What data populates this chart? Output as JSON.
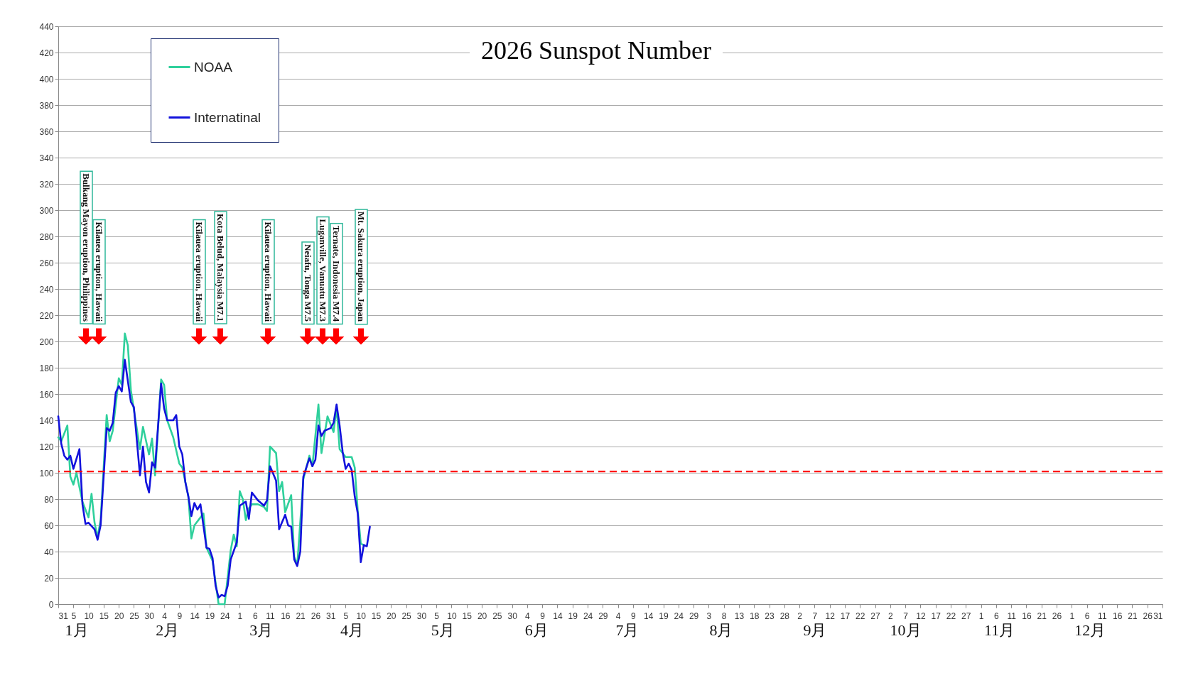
{
  "chart_data": {
    "type": "line",
    "title": "2026 Sunspot Number",
    "xlim": [
      "2025-12-31",
      "2026-12-31"
    ],
    "xticks": [
      {
        "value": "2025-12-31",
        "label": "31"
      },
      {
        "value": "2026-01-05",
        "label": "5"
      },
      {
        "value": "2026-01-10",
        "label": "10"
      },
      {
        "value": "2026-01-15",
        "label": "15"
      },
      {
        "value": "2026-01-20",
        "label": "20"
      },
      {
        "value": "2026-01-25",
        "label": "25"
      },
      {
        "value": "2026-01-30",
        "label": "30"
      },
      {
        "value": "2026-02-04",
        "label": "4"
      },
      {
        "value": "2026-02-09",
        "label": "9"
      },
      {
        "value": "2026-02-14",
        "label": "14"
      },
      {
        "value": "2026-02-19",
        "label": "19"
      },
      {
        "value": "2026-02-24",
        "label": "24"
      },
      {
        "value": "2026-03-01",
        "label": "1"
      },
      {
        "value": "2026-03-06",
        "label": "6"
      },
      {
        "value": "2026-03-11",
        "label": "11"
      },
      {
        "value": "2026-03-16",
        "label": "16"
      },
      {
        "value": "2026-03-21",
        "label": "21"
      },
      {
        "value": "2026-03-26",
        "label": "26"
      },
      {
        "value": "2026-03-31",
        "label": "31"
      },
      {
        "value": "2026-04-05",
        "label": "5"
      },
      {
        "value": "2026-04-10",
        "label": "10"
      },
      {
        "value": "2026-04-15",
        "label": "15"
      },
      {
        "value": "2026-04-20",
        "label": "20"
      },
      {
        "value": "2026-04-25",
        "label": "25"
      },
      {
        "value": "2026-04-30",
        "label": "30"
      },
      {
        "value": "2026-05-05",
        "label": "5"
      },
      {
        "value": "2026-05-10",
        "label": "10"
      },
      {
        "value": "2026-05-15",
        "label": "15"
      },
      {
        "value": "2026-05-20",
        "label": "20"
      },
      {
        "value": "2026-05-25",
        "label": "25"
      },
      {
        "value": "2026-05-30",
        "label": "30"
      },
      {
        "value": "2026-06-04",
        "label": "4"
      },
      {
        "value": "2026-06-09",
        "label": "9"
      },
      {
        "value": "2026-06-14",
        "label": "14"
      },
      {
        "value": "2026-06-19",
        "label": "19"
      },
      {
        "value": "2026-06-24",
        "label": "24"
      },
      {
        "value": "2026-06-29",
        "label": "29"
      },
      {
        "value": "2026-07-04",
        "label": "4"
      },
      {
        "value": "2026-07-09",
        "label": "9"
      },
      {
        "value": "2026-07-14",
        "label": "14"
      },
      {
        "value": "2026-07-19",
        "label": "19"
      },
      {
        "value": "2026-07-24",
        "label": "24"
      },
      {
        "value": "2026-07-29",
        "label": "29"
      },
      {
        "value": "2026-08-03",
        "label": "3"
      },
      {
        "value": "2026-08-08",
        "label": "8"
      },
      {
        "value": "2026-08-13",
        "label": "13"
      },
      {
        "value": "2026-08-18",
        "label": "18"
      },
      {
        "value": "2026-08-23",
        "label": "23"
      },
      {
        "value": "2026-08-28",
        "label": "28"
      },
      {
        "value": "2026-09-02",
        "label": "2"
      },
      {
        "value": "2026-09-07",
        "label": "7"
      },
      {
        "value": "2026-09-12",
        "label": "12"
      },
      {
        "value": "2026-09-17",
        "label": "17"
      },
      {
        "value": "2026-09-22",
        "label": "22"
      },
      {
        "value": "2026-09-27",
        "label": "27"
      },
      {
        "value": "2026-10-02",
        "label": "2"
      },
      {
        "value": "2026-10-07",
        "label": "7"
      },
      {
        "value": "2026-10-12",
        "label": "12"
      },
      {
        "value": "2026-10-17",
        "label": "17"
      },
      {
        "value": "2026-10-22",
        "label": "22"
      },
      {
        "value": "2026-10-27",
        "label": "27"
      },
      {
        "value": "2026-11-01",
        "label": "1"
      },
      {
        "value": "2026-11-06",
        "label": "6"
      },
      {
        "value": "2026-11-11",
        "label": "11"
      },
      {
        "value": "2026-11-16",
        "label": "16"
      },
      {
        "value": "2026-11-21",
        "label": "21"
      },
      {
        "value": "2026-11-26",
        "label": "26"
      },
      {
        "value": "2026-12-01",
        "label": "1"
      },
      {
        "value": "2026-12-06",
        "label": "6"
      },
      {
        "value": "2026-12-11",
        "label": "11"
      },
      {
        "value": "2026-12-16",
        "label": "16"
      },
      {
        "value": "2026-12-21",
        "label": "21"
      },
      {
        "value": "2026-12-26",
        "label": "26"
      },
      {
        "value": "2026-12-31",
        "label": "31"
      }
    ],
    "x2lim": [
      "2025-12-31",
      "2026-12-31"
    ],
    "x2ticks": [
      {
        "value": "2026-01-06",
        "label": "1月"
      },
      {
        "value": "2026-02-05",
        "label": "2月"
      },
      {
        "value": "2026-03-08",
        "label": "3月"
      },
      {
        "value": "2026-04-07",
        "label": "4月"
      },
      {
        "value": "2026-05-07",
        "label": "5月"
      },
      {
        "value": "2026-06-07",
        "label": "6月"
      },
      {
        "value": "2026-07-07",
        "label": "7月"
      },
      {
        "value": "2026-08-07",
        "label": "8月"
      },
      {
        "value": "2026-09-07",
        "label": "9月"
      },
      {
        "value": "2026-10-07",
        "label": "10月"
      },
      {
        "value": "2026-11-07",
        "label": "11月"
      },
      {
        "value": "2026-12-07",
        "label": "12月"
      }
    ],
    "ylim": [
      0,
      440
    ],
    "yticks": [
      0,
      20,
      40,
      60,
      80,
      100,
      120,
      140,
      160,
      180,
      200,
      220,
      240,
      260,
      280,
      300,
      320,
      340,
      360,
      380,
      400,
      420,
      440
    ],
    "grid": "y",
    "legend": "top left",
    "line_style": "solid",
    "series": [
      {
        "name": "NOAA",
        "color": "#2fd09c",
        "x": [
          "2025-12-31",
          "2026-01-01",
          "2026-01-03",
          "2026-01-04",
          "2026-01-05",
          "2026-01-06",
          "2026-01-08",
          "2026-01-10",
          "2026-01-11",
          "2026-01-12",
          "2026-01-13",
          "2026-01-14",
          "2026-01-16",
          "2026-01-17",
          "2026-01-18",
          "2026-01-20",
          "2026-01-21",
          "2026-01-22",
          "2026-01-23",
          "2026-01-24",
          "2026-01-27",
          "2026-01-28",
          "2026-01-30",
          "2026-01-31",
          "2026-02-01",
          "2026-02-03",
          "2026-02-04",
          "2026-02-05",
          "2026-02-07",
          "2026-02-09",
          "2026-02-10",
          "2026-02-12",
          "2026-02-13",
          "2026-02-14",
          "2026-02-17",
          "2026-02-18",
          "2026-02-20",
          "2026-02-22",
          "2026-02-24",
          "2026-02-26",
          "2026-02-27",
          "2026-02-28",
          "2026-03-01",
          "2026-03-02",
          "2026-03-03",
          "2026-03-04",
          "2026-03-05",
          "2026-03-07",
          "2026-03-09",
          "2026-03-10",
          "2026-03-11",
          "2026-03-13",
          "2026-03-14",
          "2026-03-15",
          "2026-03-16",
          "2026-03-18",
          "2026-03-19",
          "2026-03-20",
          "2026-03-22",
          "2026-03-24",
          "2026-03-25",
          "2026-03-27",
          "2026-03-28",
          "2026-03-30",
          "2026-04-01",
          "2026-04-02",
          "2026-04-03",
          "2026-04-05",
          "2026-04-07",
          "2026-04-08",
          "2026-04-09",
          "2026-04-10",
          "2026-04-11"
        ],
        "values": [
          127,
          124,
          136,
          97,
          91,
          100,
          78,
          66,
          84,
          62,
          51,
          64,
          144,
          124,
          132,
          172,
          167,
          206,
          197,
          163,
          118,
          135,
          114,
          126,
          98,
          171,
          167,
          140,
          127,
          107,
          104,
          82,
          50,
          60,
          69,
          43,
          33,
          0,
          0,
          41,
          53,
          44,
          86,
          80,
          64,
          73,
          76,
          76,
          74,
          71,
          120,
          115,
          86,
          93,
          70,
          83,
          36,
          30,
          95,
          113,
          105,
          152,
          115,
          143,
          131,
          150,
          118,
          112,
          112,
          104,
          71,
          46,
          45
        ]
      },
      {
        "name": "Internatinal",
        "color": "#1212dc",
        "x": [
          "2025-12-31",
          "2026-01-01",
          "2026-01-02",
          "2026-01-03",
          "2026-01-04",
          "2026-01-05",
          "2026-01-07",
          "2026-01-08",
          "2026-01-09",
          "2026-01-10",
          "2026-01-12",
          "2026-01-13",
          "2026-01-14",
          "2026-01-16",
          "2026-01-17",
          "2026-01-18",
          "2026-01-19",
          "2026-01-20",
          "2026-01-21",
          "2026-01-22",
          "2026-01-24",
          "2026-01-25",
          "2026-01-27",
          "2026-01-28",
          "2026-01-29",
          "2026-01-30",
          "2026-01-31",
          "2026-02-01",
          "2026-02-03",
          "2026-02-04",
          "2026-02-05",
          "2026-02-07",
          "2026-02-08",
          "2026-02-09",
          "2026-02-10",
          "2026-02-11",
          "2026-02-12",
          "2026-02-13",
          "2026-02-14",
          "2026-02-15",
          "2026-02-16",
          "2026-02-18",
          "2026-02-19",
          "2026-02-20",
          "2026-02-21",
          "2026-02-22",
          "2026-02-23",
          "2026-02-24",
          "2026-02-25",
          "2026-02-26",
          "2026-02-28",
          "2026-03-01",
          "2026-03-03",
          "2026-03-04",
          "2026-03-05",
          "2026-03-07",
          "2026-03-09",
          "2026-03-10",
          "2026-03-11",
          "2026-03-13",
          "2026-03-14",
          "2026-03-16",
          "2026-03-17",
          "2026-03-18",
          "2026-03-19",
          "2026-03-20",
          "2026-03-21",
          "2026-03-22",
          "2026-03-24",
          "2026-03-25",
          "2026-03-26",
          "2026-03-27",
          "2026-03-28",
          "2026-03-29",
          "2026-03-31",
          "2026-04-01",
          "2026-04-02",
          "2026-04-03",
          "2026-04-04",
          "2026-04-05",
          "2026-04-06",
          "2026-04-07",
          "2026-04-08",
          "2026-04-09",
          "2026-04-10",
          "2026-04-11",
          "2026-04-12",
          "2026-04-13"
        ],
        "values": [
          143,
          122,
          113,
          110,
          113,
          103,
          118,
          76,
          61,
          62,
          57,
          49,
          60,
          134,
          132,
          138,
          161,
          166,
          162,
          186,
          154,
          150,
          98,
          120,
          93,
          85,
          108,
          104,
          168,
          149,
          140,
          140,
          144,
          120,
          114,
          93,
          82,
          67,
          77,
          72,
          76,
          43,
          42,
          35,
          14,
          5,
          7,
          6,
          14,
          34,
          47,
          75,
          78,
          65,
          85,
          79,
          75,
          79,
          105,
          94,
          57,
          68,
          60,
          59,
          34,
          29,
          40,
          97,
          111,
          105,
          110,
          136,
          128,
          132,
          134,
          138,
          152,
          136,
          116,
          103,
          107,
          102,
          82,
          69,
          32,
          45,
          44,
          59
        ]
      }
    ],
    "ref_lines": [
      {
        "axis": "y",
        "value": 101,
        "color": "#ff0000",
        "line_style": "dashed"
      }
    ],
    "annotations": [
      "Bulkang Mayon eruption, Philippines",
      "Kīlauea eruption, Hawaii",
      "Kīlauea eruption, Hawaii",
      "Kota Belud, Malaysia M7.1",
      "Kīlauea eruption, Hawaii",
      "Neiafu, Tonga M7.5",
      "Luganville, Vanuatu M7.3",
      "Ternate, Indonesia M7.4",
      "Mt. Sakura eruption, Japan"
    ]
  }
}
